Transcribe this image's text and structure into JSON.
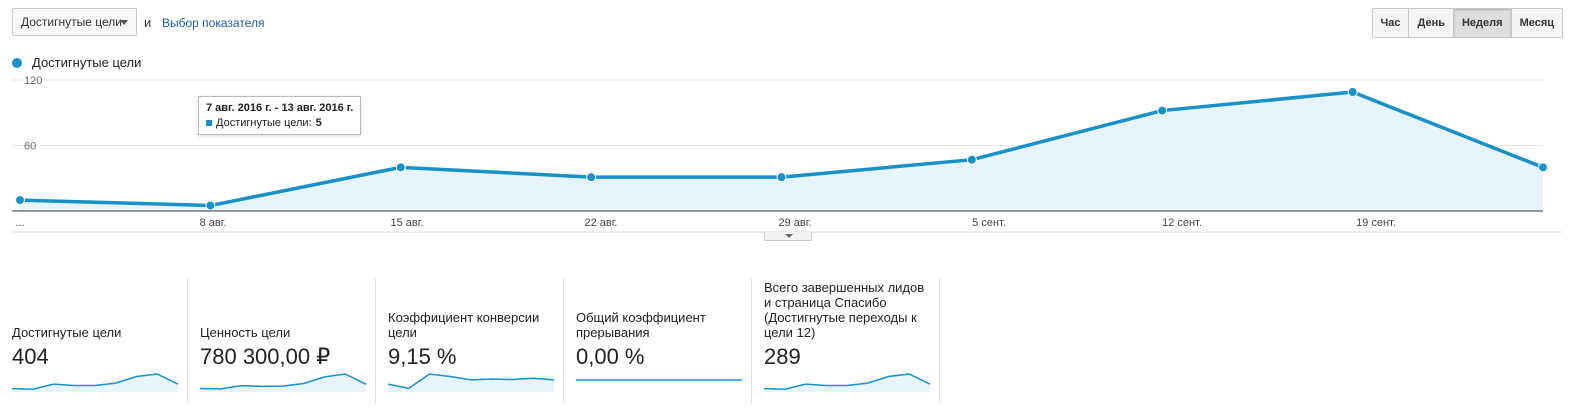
{
  "controls": {
    "metric_select": "Достигнутые цели",
    "and_text": "и",
    "metric_link": "Выбор показателя",
    "granularity": [
      {
        "label": "Час",
        "active": false
      },
      {
        "label": "День",
        "active": false
      },
      {
        "label": "Неделя",
        "active": true
      },
      {
        "label": "Месяц",
        "active": false
      }
    ]
  },
  "legend": {
    "series": "Достигнутые цели",
    "color": "#1890c8"
  },
  "tooltip": {
    "title": "7 авг. 2016 г. - 13 авг. 2016 г.",
    "label": "Достигнутые цели:",
    "value": "5"
  },
  "chart_data": {
    "type": "area",
    "series": [
      {
        "name": "Достигнутые цели",
        "values": [
          10,
          5,
          40,
          31,
          31,
          47,
          92,
          109,
          40
        ]
      }
    ],
    "x_tick_labels": [
      "...",
      "8 авг.",
      "15 авг.",
      "22 авг.",
      "29 авг.",
      "5 сент.",
      "12 сент.",
      "19 сент."
    ],
    "y_tick_labels": [
      "120",
      "60"
    ],
    "ylim": [
      0,
      120
    ],
    "grid": true,
    "color": "#1890c8"
  },
  "scorecards": [
    {
      "label": "Достигнутые цели",
      "value": "404",
      "spark": [
        10,
        5,
        40,
        31,
        31,
        47,
        92,
        109,
        40
      ],
      "flat": false
    },
    {
      "label": "Ценность цели",
      "value": "780 300,00 ₽",
      "spark": [
        10,
        8,
        30,
        25,
        27,
        45,
        90,
        110,
        40
      ],
      "flat": false
    },
    {
      "label": "Коэффициент конверсии цели",
      "value": "9,15 %",
      "spark": [
        35,
        10,
        95,
        80,
        60,
        65,
        62,
        70,
        60
      ],
      "flat": false
    },
    {
      "label": "Общий коэффициент прерывания",
      "value": "0,00 %",
      "spark": [
        0,
        0,
        0,
        0,
        0,
        0,
        0,
        0,
        0
      ],
      "flat": true
    },
    {
      "label": "Всего завершенных лидов и страница Спасибо (Достигнутые переходы к цели 12)",
      "value": "289",
      "spark": [
        10,
        5,
        40,
        31,
        31,
        47,
        92,
        109,
        40
      ],
      "flat": false
    }
  ]
}
